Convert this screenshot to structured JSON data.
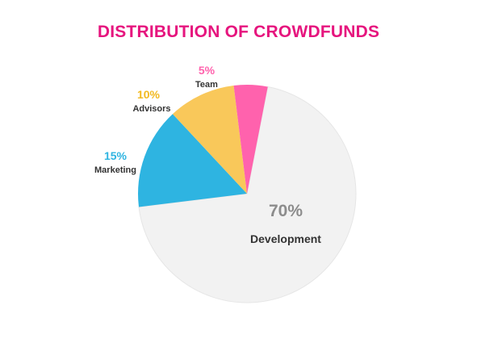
{
  "chart_data": {
    "type": "pie",
    "title": "DISTRIBUTION OF CROWDFUNDS",
    "slices": [
      {
        "name": "Development",
        "value": 70,
        "label": "70%",
        "color": "#f2f2f2",
        "label_color": "#8c8c8c"
      },
      {
        "name": "Marketing",
        "value": 15,
        "label": "15%",
        "color": "#2eb4e1",
        "label_color": "#2eb4e1"
      },
      {
        "name": "Advisors",
        "value": 10,
        "label": "10%",
        "color": "#f9c85a",
        "label_color": "#f2b91f"
      },
      {
        "name": "Team",
        "value": 5,
        "label": "5%",
        "color": "#ff62ad",
        "label_color": "#ff62ad"
      }
    ],
    "legend": "none",
    "title_color": "#e6157e"
  }
}
